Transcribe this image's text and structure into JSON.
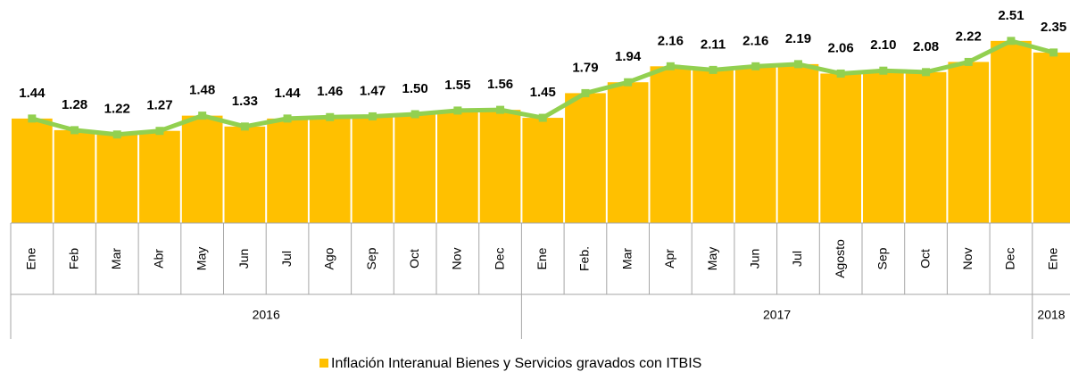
{
  "chart_data": {
    "type": "bar_line",
    "categories": [
      "Ene",
      "Feb",
      "Mar",
      "Abr",
      "May",
      "Jun",
      "Jul",
      "Ago",
      "Sep",
      "Oct",
      "Nov",
      "Dec",
      "Ene",
      "Feb.",
      "Mar",
      "Apr",
      "May",
      "Jun",
      "Jul",
      "Agosto",
      "Sep",
      "Oct",
      "Nov",
      "Dec",
      "Ene"
    ],
    "category_groups": [
      "2016",
      null,
      null,
      null,
      null,
      null,
      null,
      null,
      null,
      null,
      null,
      null,
      "2017",
      null,
      null,
      null,
      null,
      null,
      null,
      null,
      null,
      null,
      null,
      null,
      "2018"
    ],
    "series": [
      {
        "name": "Inflación Interanual Bienes y Servicios gravados con ITBIS",
        "color": "#ffc000",
        "line_color": "#92d050",
        "values": [
          1.44,
          1.28,
          1.22,
          1.27,
          1.48,
          1.33,
          1.44,
          1.46,
          1.47,
          1.5,
          1.55,
          1.56,
          1.45,
          1.79,
          1.94,
          2.16,
          2.11,
          2.16,
          2.19,
          2.06,
          2.1,
          2.08,
          2.22,
          2.51,
          2.35
        ],
        "value_labels": [
          "1.44",
          "1.28",
          "1.22",
          "1.27",
          "1.48",
          "1.33",
          "1.44",
          "1.46",
          "1.47",
          "1.50",
          "1.55",
          "1.56",
          "1.45",
          "1.79",
          "1.94",
          "2.16",
          "2.11",
          "2.16",
          "2.19",
          "2.06",
          "2.10",
          "2.08",
          "2.22",
          "2.51",
          "2.35"
        ]
      }
    ],
    "ylim": [
      0,
      3
    ],
    "legend": "bottom"
  }
}
